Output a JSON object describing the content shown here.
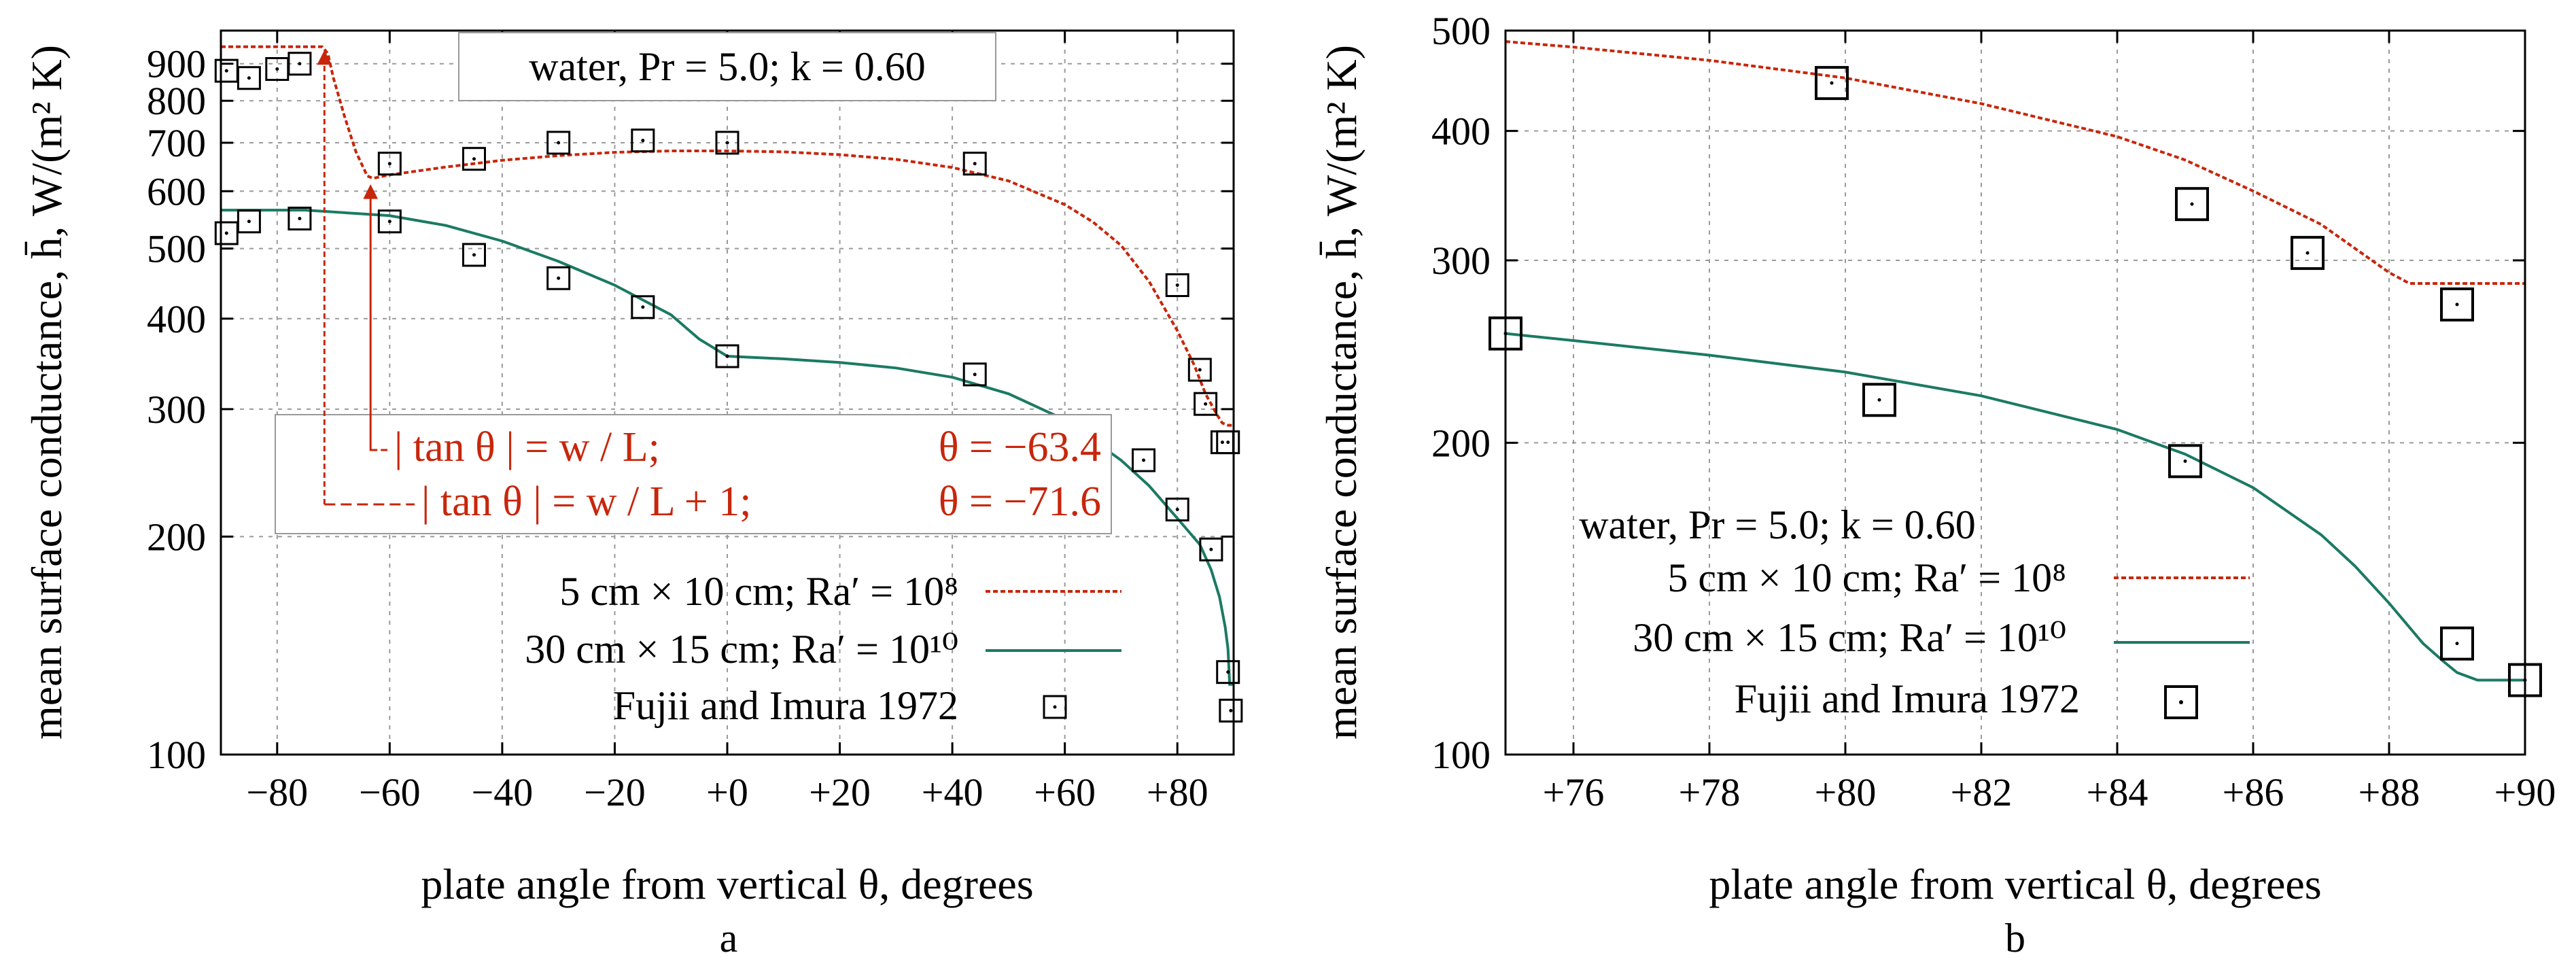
{
  "chart_data": [
    {
      "type": "line",
      "panel_label": "a",
      "xlabel": "plate angle from vertical θ, degrees",
      "ylabel": "mean surface conductance, h̄,  W/(m² K)",
      "xlim": [
        -90,
        90
      ],
      "ylim": [
        100,
        1000
      ],
      "yscale": "log",
      "grid": true,
      "x_ticks": [
        -80,
        -60,
        -40,
        -20,
        0,
        20,
        40,
        60,
        80
      ],
      "x_tick_labels": [
        "−80",
        "−60",
        "−40",
        "−20",
        "+0",
        "+20",
        "+40",
        "+60",
        "+80"
      ],
      "y_ticks": [
        100,
        200,
        300,
        400,
        500,
        600,
        700,
        800,
        900
      ],
      "y_tick_labels": [
        "100",
        "200",
        "300",
        "400",
        "500",
        "600",
        "700",
        "800",
        "900"
      ],
      "title_box": "water, Pr = 5.0; k = 0.60",
      "annotations": [
        {
          "text": "| tan θ | = w / L;",
          "theta_text": "θ = −63.4",
          "x": -63.4,
          "y": 620,
          "style": "solid-arrow"
        },
        {
          "text": "| tan θ | = w / L + 1;",
          "theta_text": "θ = −71.6",
          "x": -71.6,
          "y": 950,
          "style": "dashed-arrow"
        }
      ],
      "legend_position": "lower-left",
      "series": [
        {
          "name": "5 cm × 10 cm; Ra′ = 10⁸",
          "color": "#c8260b",
          "style": "dashed",
          "x": [
            -90,
            -72,
            -71,
            -70,
            -68,
            -66,
            -64,
            -63,
            -60,
            -50,
            -40,
            -30,
            -20,
            -10,
            0,
            10,
            20,
            30,
            40,
            50,
            60,
            65,
            70,
            75,
            80,
            83,
            85,
            87,
            88,
            89,
            90
          ],
          "y": [
            950,
            950,
            930,
            860,
            760,
            680,
            630,
            625,
            632,
            648,
            662,
            672,
            679,
            682,
            682,
            680,
            674,
            664,
            647,
            620,
            575,
            544,
            505,
            450,
            385,
            345,
            315,
            295,
            287,
            285,
            285
          ]
        },
        {
          "name": "30 cm × 15 cm; Ra′ = 10¹⁰",
          "color": "#1b7a62",
          "style": "solid",
          "x": [
            -90,
            -75,
            -60,
            -50,
            -40,
            -30,
            -20,
            -10,
            -5,
            0,
            10,
            20,
            30,
            40,
            50,
            60,
            70,
            75,
            80,
            84,
            86,
            87.5,
            88.5,
            89,
            89.3,
            90
          ],
          "y": [
            565,
            565,
            555,
            538,
            512,
            480,
            445,
            405,
            375,
            355,
            352,
            348,
            342,
            332,
            315,
            290,
            255,
            235,
            212,
            195,
            180,
            165,
            150,
            140,
            125,
            125
          ]
        },
        {
          "name": "Fujii and Imura 1972",
          "marker": "square-with-dot",
          "x": [
            -89,
            -85,
            -80,
            -76,
            -89,
            -85,
            -76,
            -60,
            -60,
            -45,
            -45,
            -30,
            -30,
            -15,
            -15,
            0,
            0,
            44,
            44,
            74,
            80,
            80,
            84,
            85,
            86,
            88,
            89,
            89,
            89.5
          ],
          "y": [
            880,
            860,
            885,
            900,
            525,
            545,
            550,
            545,
            655,
            490,
            665,
            455,
            700,
            415,
            705,
            355,
            700,
            655,
            335,
            255,
            445,
            218,
            340,
            305,
            192,
            270,
            270,
            130,
            115
          ]
        }
      ]
    },
    {
      "type": "line",
      "panel_label": "b",
      "xlabel": "plate angle from vertical θ, degrees",
      "ylabel": "mean surface conductance, h̄,  W/(m² K)",
      "xlim": [
        75,
        90
      ],
      "ylim": [
        100,
        500
      ],
      "yscale": "log",
      "grid": true,
      "x_ticks": [
        76,
        78,
        80,
        82,
        84,
        86,
        88,
        90
      ],
      "x_tick_labels": [
        "+76",
        "+78",
        "+80",
        "+82",
        "+84",
        "+86",
        "+88",
        "+90"
      ],
      "y_ticks": [
        100,
        200,
        300,
        400,
        500
      ],
      "y_tick_labels": [
        "100",
        "200",
        "300",
        "400",
        "500"
      ],
      "legend_title": "water, Pr = 5.0; k = 0.60",
      "legend_position": "lower-left",
      "series": [
        {
          "name": "5 cm × 10 cm; Ra′ = 10⁸",
          "color": "#c8260b",
          "style": "dashed",
          "x": [
            75,
            76,
            78,
            80,
            82,
            84,
            85,
            86,
            87,
            87.5,
            88,
            88.3,
            89,
            90
          ],
          "y": [
            488,
            482,
            468,
            450,
            425,
            395,
            375,
            350,
            325,
            308,
            292,
            285,
            285,
            285
          ]
        },
        {
          "name": "30 cm × 15 cm; Ra′ = 10¹⁰",
          "color": "#1b7a62",
          "style": "solid",
          "x": [
            75,
            76,
            78,
            80,
            82,
            84,
            85,
            86,
            87,
            87.5,
            88,
            88.5,
            88.8,
            89,
            89.3,
            90
          ],
          "y": [
            255,
            251,
            243,
            234,
            222,
            206,
            195,
            181,
            163,
            152,
            140,
            128,
            123,
            120,
            118,
            118
          ]
        },
        {
          "name": "Fujii and Imura 1972",
          "marker": "square-with-dot",
          "x": [
            75,
            79.8,
            80.5,
            85,
            85.1,
            86.8,
            89,
            89,
            90
          ],
          "y": [
            255,
            445,
            220,
            192,
            340,
            305,
            272,
            128,
            118
          ]
        }
      ]
    }
  ]
}
